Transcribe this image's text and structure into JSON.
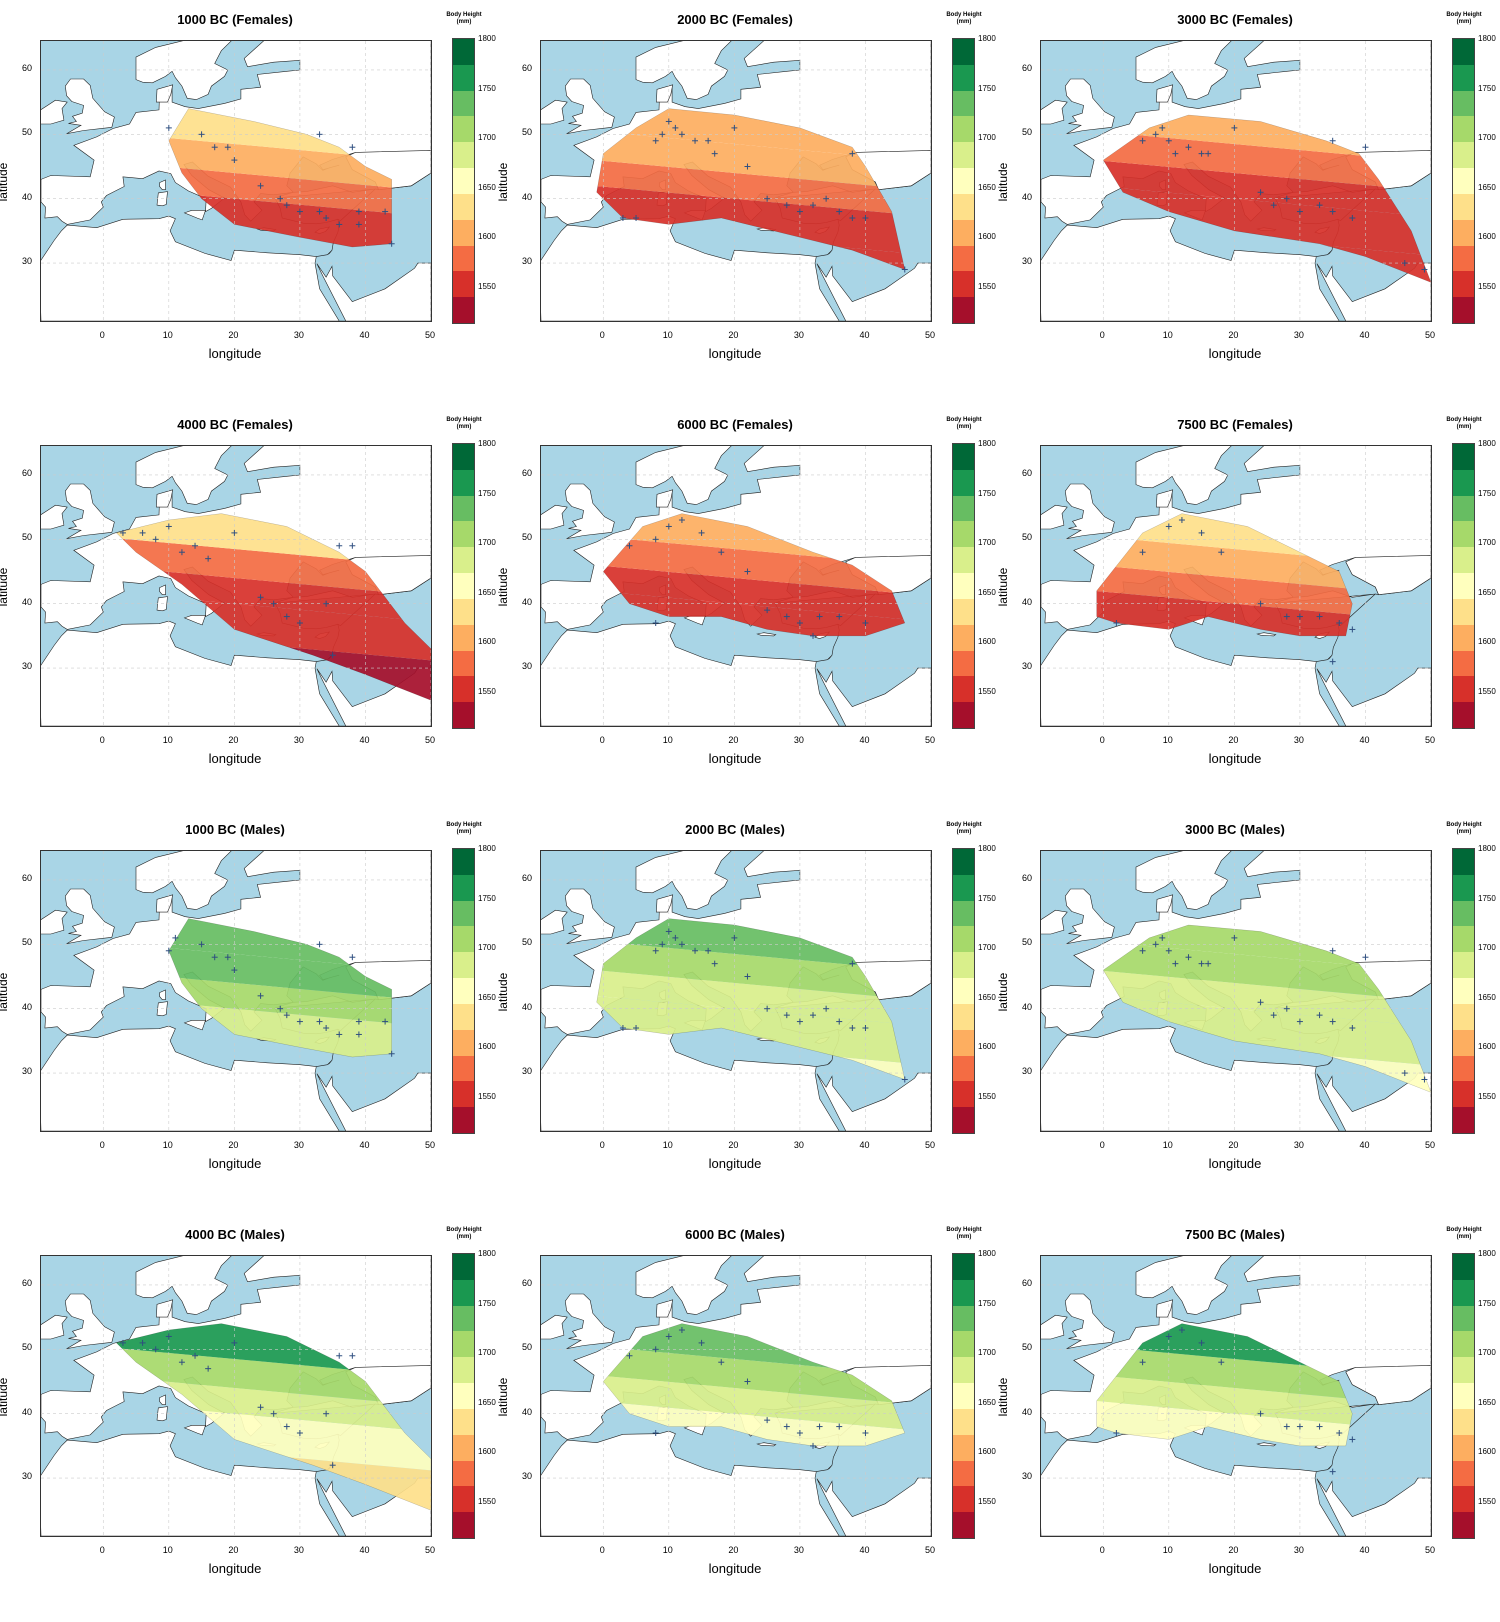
{
  "colors": {
    "sea": "#a9d5e6",
    "land": "#ffffff",
    "coast": "#222222",
    "border": "#bdbdbd",
    "grid": "#cccccc",
    "marker": "#2f4f80",
    "palette": [
      "#a50f2b",
      "#d7302a",
      "#f46c43",
      "#fdae60",
      "#fee08a",
      "#ffffbe",
      "#d9ef8b",
      "#a6d96a",
      "#67bd62",
      "#1a9850",
      "#006837"
    ]
  },
  "legend": {
    "title": "Body Height",
    "unit": "(mm)",
    "ticks": [
      "1800",
      "1750",
      "1700",
      "1650",
      "1600",
      "1550"
    ]
  },
  "axes": {
    "xlabel": "longitude",
    "ylabel": "latitude",
    "xticks": [
      "0",
      "10",
      "20",
      "30",
      "40",
      "50"
    ],
    "yticks": [
      "60",
      "50",
      "40",
      "30"
    ]
  },
  "panels": [
    {
      "title": "1000 BC (Females)",
      "sex": "female",
      "period": "1000 BC",
      "range_mm": "1550–1650"
    },
    {
      "title": "2000 BC (Females)",
      "sex": "female",
      "period": "2000 BC",
      "range_mm": "1550–1650"
    },
    {
      "title": "3000 BC (Females)",
      "sex": "female",
      "period": "3000 BC",
      "range_mm": "1550–1650"
    },
    {
      "title": "4000 BC (Females)",
      "sex": "female",
      "period": "4000 BC",
      "range_mm": "1525–1650"
    },
    {
      "title": "6000 BC (Females)",
      "sex": "female",
      "period": "6000 BC",
      "range_mm": "1525–1625"
    },
    {
      "title": "7500 BC (Females)",
      "sex": "female",
      "period": "7500 BC",
      "range_mm": "1525–1650"
    },
    {
      "title": "1000 BC (Males)",
      "sex": "male",
      "period": "1000 BC",
      "range_mm": "1650–1750"
    },
    {
      "title": "2000 BC (Males)",
      "sex": "male",
      "period": "2000 BC",
      "range_mm": "1650–1725"
    },
    {
      "title": "3000 BC (Males)",
      "sex": "male",
      "period": "3000 BC",
      "range_mm": "1625–1725"
    },
    {
      "title": "4000 BC (Males)",
      "sex": "male",
      "period": "4000 BC",
      "range_mm": "1625–1750"
    },
    {
      "title": "6000 BC (Males)",
      "sex": "male",
      "period": "6000 BC",
      "range_mm": "1625–1750"
    },
    {
      "title": "7500 BC (Males)",
      "sex": "male",
      "period": "7500 BC",
      "range_mm": "1625–1775"
    }
  ]
}
